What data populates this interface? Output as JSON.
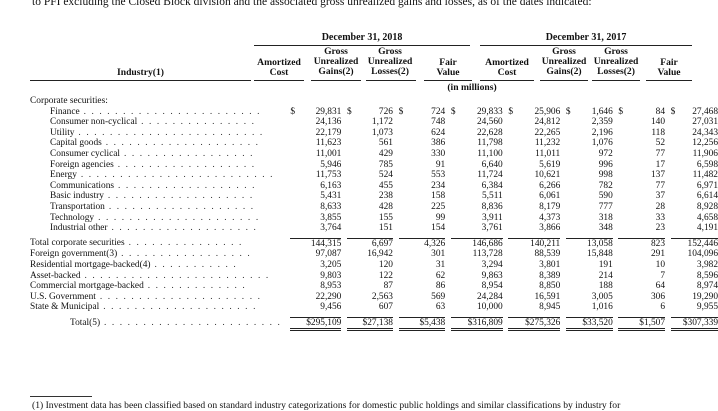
{
  "intro_text": "to PFI excluding the Closed Block division and the associated gross unrealized gains and losses, as of the dates indicated:",
  "years": [
    "December 31, 2018",
    "December 31, 2017"
  ],
  "row_header": "Industry(1)",
  "col_headers": {
    "amortized": [
      "Amortized",
      "Cost"
    ],
    "gains": [
      "Gross",
      "Unrealized",
      "Gains(2)"
    ],
    "losses": [
      "Gross",
      "Unrealized",
      "Losses(2)"
    ],
    "fair": [
      "Fair",
      "Value"
    ]
  },
  "units": "(in millions)",
  "section_label": "Corporate securities:",
  "rows": [
    {
      "label": "Finance",
      "indent": true,
      "leader": " . . . . . . . . . . . . . . . . . . . . . . .",
      "cur": true,
      "v": [
        "29,831",
        "726",
        "724",
        "29,833",
        "25,906",
        "1,646",
        "84",
        "27,468"
      ]
    },
    {
      "label": "Consumer non-cyclical",
      "indent": true,
      "leader": " . . . . . . . . . . . . . . .",
      "v": [
        "24,136",
        "1,172",
        "748",
        "24,560",
        "24,812",
        "2,359",
        "140",
        "27,031"
      ]
    },
    {
      "label": "Utility",
      "indent": true,
      "leader": " . . . . . . . . . . . . . . . . . . . . . . . .",
      "v": [
        "22,179",
        "1,073",
        "624",
        "22,628",
        "22,265",
        "2,196",
        "118",
        "24,343"
      ]
    },
    {
      "label": "Capital goods",
      "indent": true,
      "leader": " . . . . . . . . . . . . . . . . . . . .",
      "v": [
        "11,623",
        "561",
        "386",
        "11,798",
        "11,232",
        "1,076",
        "52",
        "12,256"
      ]
    },
    {
      "label": "Consumer cyclical",
      "indent": true,
      "leader": " . . . . . . . . . . . . . . . . .",
      "v": [
        "11,001",
        "429",
        "330",
        "11,100",
        "11,011",
        "972",
        "77",
        "11,906"
      ]
    },
    {
      "label": "Foreign agencies",
      "indent": true,
      "leader": " . . . . . . . . . . . . . . . . . .",
      "v": [
        "5,946",
        "785",
        "91",
        "6,640",
        "5,619",
        "996",
        "17",
        "6,598"
      ]
    },
    {
      "label": "Energy",
      "indent": true,
      "leader": " . . . . . . . . . . . . . . . . . . . . . . . . .",
      "v": [
        "11,753",
        "524",
        "553",
        "11,724",
        "10,621",
        "998",
        "137",
        "11,482"
      ]
    },
    {
      "label": "Communications",
      "indent": true,
      "leader": " . . . . . . . . . . . . . . . . . .",
      "v": [
        "6,163",
        "455",
        "234",
        "6,384",
        "6,266",
        "782",
        "77",
        "6,971"
      ]
    },
    {
      "label": "Basic industry",
      "indent": true,
      "leader": " . . . . . . . . . . . . . . . . . . .",
      "v": [
        "5,431",
        "238",
        "158",
        "5,511",
        "6,061",
        "590",
        "37",
        "6,614"
      ]
    },
    {
      "label": "Transportation",
      "indent": true,
      "leader": " . . . . . . . . . . . . . . . . . . .",
      "v": [
        "8,633",
        "428",
        "225",
        "8,836",
        "8,179",
        "777",
        "28",
        "8,928"
      ]
    },
    {
      "label": "Technology",
      "indent": true,
      "leader": " . . . . . . . . . . . . . . . . . . . . .",
      "v": [
        "3,855",
        "155",
        "99",
        "3,911",
        "4,373",
        "318",
        "33",
        "4,658"
      ]
    },
    {
      "label": "Industrial other",
      "indent": true,
      "leader": " . . . . . . . . . . . . . . . . . . .",
      "v": [
        "3,764",
        "151",
        "154",
        "3,761",
        "3,866",
        "348",
        "23",
        "4,191"
      ]
    }
  ],
  "rows2": [
    {
      "label": "Total corporate securities",
      "leader": " . . . . . . . . . . . . . . .",
      "tot": true,
      "v": [
        "144,315",
        "6,697",
        "4,326",
        "146,686",
        "140,211",
        "13,058",
        "823",
        "152,446"
      ]
    },
    {
      "label": "Foreign government(3)",
      "leader": " . . . . . . . . . . . . . . . . .",
      "v": [
        "97,087",
        "16,942",
        "301",
        "113,728",
        "88,539",
        "15,848",
        "291",
        "104,096"
      ]
    },
    {
      "label": "Residential mortgage-backed(4)",
      "leader": " . . . . . . . . . . .",
      "v": [
        "3,205",
        "120",
        "31",
        "3,294",
        "3,801",
        "191",
        "10",
        "3,982"
      ]
    },
    {
      "label": "Asset-backed",
      "leader": " . . . . . . . . . . . . . . . . . . . . . . . .",
      "v": [
        "9,803",
        "122",
        "62",
        "9,863",
        "8,389",
        "214",
        "7",
        "8,596"
      ]
    },
    {
      "label": "Commercial mortgage-backed",
      "leader": " . . . . . . . . . . . . .",
      "v": [
        "8,953",
        "87",
        "86",
        "8,954",
        "8,850",
        "188",
        "64",
        "8,974"
      ]
    },
    {
      "label": "U.S. Government",
      "leader": " . . . . . . . . . . . . . . . . . . . . .",
      "v": [
        "22,290",
        "2,563",
        "569",
        "24,284",
        "16,591",
        "3,005",
        "306",
        "19,290"
      ]
    },
    {
      "label": "State & Municipal",
      "leader": " . . . . . . . . . . . . . . . . . . . .",
      "v": [
        "9,456",
        "607",
        "63",
        "10,000",
        "8,945",
        "1,016",
        "6",
        "9,955"
      ]
    }
  ],
  "total": {
    "label": "Total(5)",
    "leader": " . . . . . . . . . . . . . . . . . . . . . . .",
    "v": [
      "$295,109",
      "$27,138",
      "$5,438",
      "$316,809",
      "$275,326",
      "$33,520",
      "$1,507",
      "$307,339"
    ]
  },
  "footnote": "(1)  Investment data has been classified based on standard industry categorizations for domestic public holdings and similar classifications by industry for"
}
